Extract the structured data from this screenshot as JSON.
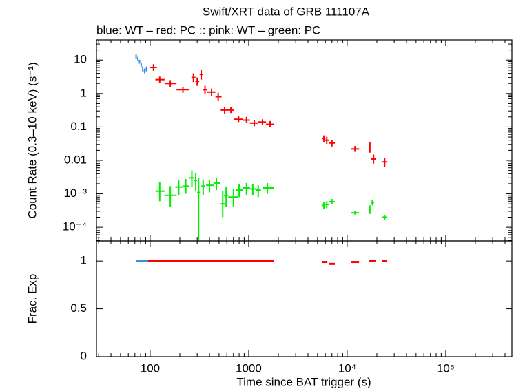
{
  "chart_data": [
    {
      "type": "errorbar",
      "title": "Swift/XRT data of GRB 111107A",
      "subtitle": "blue: WT  – red: PC  :: pink: WT  – green: PC",
      "y_label": "Count Rate (0.3–10 keV) (s⁻¹)",
      "log_x": true,
      "log_y": true,
      "xlim": [
        28.5,
        470000
      ],
      "xticks": [
        100,
        1000,
        {
          "value": 10000,
          "label": "10⁴"
        },
        {
          "value": 100000,
          "label": "10⁵"
        }
      ],
      "ylim": [
        3.9e-05,
        40
      ],
      "yticks": [
        {
          "value": 0.0001,
          "label": "10⁻⁴"
        },
        {
          "value": 0.001,
          "label": "10⁻³"
        },
        0.01,
        0.1,
        1,
        10
      ],
      "series": [
        {
          "color": "#3a8ee6",
          "x": [
            72,
            75,
            78,
            81,
            84,
            88,
            92
          ],
          "xlo": [
            71,
            74,
            77,
            80,
            83,
            86,
            90
          ],
          "xhi": [
            73,
            76,
            79,
            82,
            85,
            90,
            94
          ],
          "values": [
            13,
            11,
            9,
            7,
            5.5,
            4.8,
            5.5
          ],
          "ylo": [
            11,
            9.5,
            7.8,
            6,
            4.6,
            4,
            4.6
          ],
          "yhi": [
            15,
            12.5,
            10.2,
            8,
            6.4,
            5.6,
            6.4
          ]
        },
        {
          "color": "#ff0000",
          "x": [
            108,
            125,
            160,
            215,
            275,
            300,
            330,
            360,
            420,
            490,
            570,
            660,
            790,
            950,
            1140,
            1380,
            1650,
            5800,
            6200,
            7000,
            12000,
            17000,
            18500,
            24000
          ],
          "xlo": [
            100,
            113,
            140,
            185,
            262,
            288,
            318,
            345,
            380,
            460,
            520,
            620,
            710,
            880,
            1030,
            1250,
            1500,
            5600,
            6000,
            6500,
            11000,
            16800,
            17500,
            22500
          ],
          "xhi": [
            117,
            140,
            185,
            250,
            288,
            315,
            345,
            380,
            460,
            530,
            620,
            710,
            880,
            1030,
            1250,
            1500,
            1800,
            6000,
            6500,
            7500,
            13200,
            17300,
            19500,
            25500
          ],
          "values": [
            6,
            2.6,
            2,
            1.3,
            3,
            2.3,
            3.7,
            1.3,
            1.1,
            0.8,
            0.32,
            0.32,
            0.17,
            0.16,
            0.13,
            0.14,
            0.12,
            0.045,
            0.04,
            0.033,
            0.022,
            0.025,
            0.011,
            0.009
          ],
          "ylo": [
            4.8,
            2.1,
            1.6,
            1.05,
            2.2,
            1.7,
            2.6,
            1.0,
            0.85,
            0.62,
            0.25,
            0.26,
            0.14,
            0.13,
            0.105,
            0.115,
            0.1,
            0.035,
            0.031,
            0.026,
            0.018,
            0.017,
            0.008,
            0.0065
          ],
          "yhi": [
            7.5,
            3.2,
            2.5,
            1.6,
            4,
            3,
            5,
            1.7,
            1.4,
            1.05,
            0.4,
            0.4,
            0.21,
            0.2,
            0.16,
            0.17,
            0.15,
            0.056,
            0.051,
            0.041,
            0.027,
            0.035,
            0.015,
            0.012
          ]
        },
        {
          "color": "#00ee00",
          "x": [
            125,
            160,
            195,
            230,
            265,
            290,
            310,
            345,
            400,
            470,
            545,
            590,
            700,
            800,
            950,
            1100,
            1250,
            1550,
            5800,
            6200,
            7000,
            12000,
            17000,
            18000,
            24000
          ],
          "xlo": [
            113,
            140,
            180,
            215,
            250,
            280,
            300,
            330,
            370,
            440,
            520,
            560,
            620,
            740,
            880,
            1030,
            1180,
            1400,
            5500,
            6000,
            6500,
            11000,
            16800,
            17500,
            22500
          ],
          "xhi": [
            140,
            185,
            215,
            250,
            280,
            300,
            320,
            360,
            440,
            510,
            570,
            620,
            780,
            880,
            1030,
            1180,
            1330,
            1800,
            6000,
            6500,
            7500,
            13200,
            17300,
            18800,
            25500
          ],
          "values": [
            0.0012,
            0.0009,
            0.0016,
            0.0017,
            0.003,
            0.0025,
            0.0011,
            0.0017,
            0.0018,
            0.0021,
            0.0005,
            0.0009,
            0.0008,
            0.0013,
            0.0015,
            0.0014,
            0.0013,
            0.0015,
            0.00045,
            0.00048,
            0.00058,
            0.00027,
            0.00034,
            0.00055,
            0.0002
          ],
          "ylo": [
            0.0006,
            0.0004,
            0.0009,
            0.001,
            0.0016,
            0.0012,
            4e-05,
            0.0009,
            0.0011,
            0.0013,
            0.0002,
            0.0004,
            0.0004,
            0.0008,
            0.0009,
            0.0009,
            0.0008,
            0.001,
            0.00035,
            0.00037,
            0.00048,
            0.00024,
            0.00025,
            0.00045,
            0.00017
          ],
          "yhi": [
            0.0023,
            0.0017,
            0.0026,
            0.0028,
            0.005,
            0.0042,
            0.003,
            0.0027,
            0.0026,
            0.003,
            0.0012,
            0.0016,
            0.0014,
            0.0019,
            0.0021,
            0.002,
            0.0018,
            0.0021,
            0.00058,
            0.0006,
            0.0007,
            0.0003,
            0.00045,
            0.00065,
            0.00023
          ]
        }
      ]
    },
    {
      "type": "segments",
      "x_label": "Time since BAT trigger (s)",
      "y_label": "Frac. Exp",
      "log_x": true,
      "xlim": [
        28.5,
        470000
      ],
      "xticks": [
        100,
        1000,
        {
          "value": 10000,
          "label": "10⁴"
        },
        {
          "value": 100000,
          "label": "10⁵"
        }
      ],
      "ylim": [
        0,
        1.21
      ],
      "yticks": [
        0,
        0.5,
        1
      ],
      "series": [
        {
          "color": "#3a8ee6",
          "x_start": [
            72
          ],
          "x_end": [
            95
          ],
          "values": [
            1
          ]
        },
        {
          "color": "#ff0000",
          "x_start": [
            95,
            5600,
            6500,
            11000,
            16500,
            22500
          ],
          "x_end": [
            1800,
            6300,
            7500,
            13200,
            19500,
            25500
          ],
          "values": [
            1,
            0.99,
            0.97,
            0.99,
            1,
            1
          ]
        }
      ]
    }
  ]
}
